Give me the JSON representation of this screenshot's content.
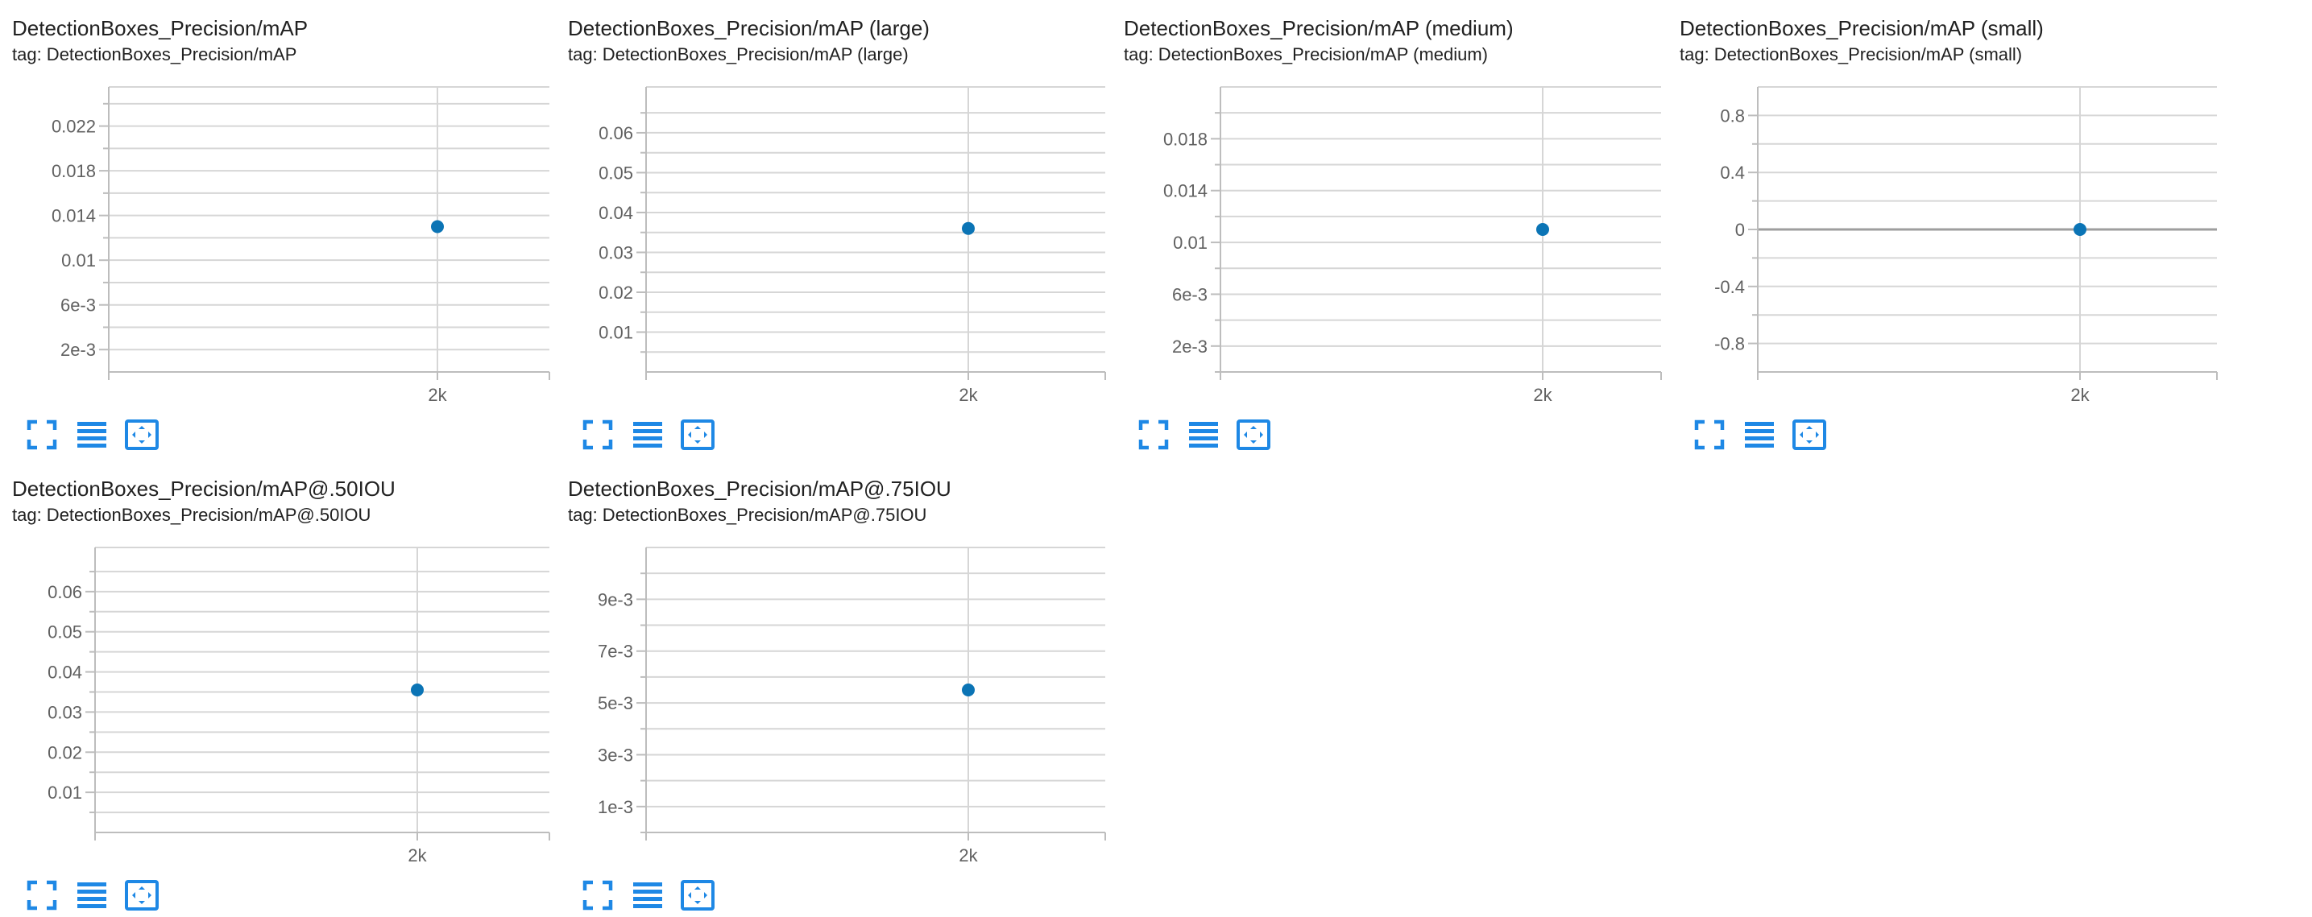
{
  "colors": {
    "accent": "#1e88e5",
    "point": "#0b74b5",
    "grid": "#d6d6d6",
    "axis": "#bdbdbd",
    "zero_line": "#9e9e9e"
  },
  "toolbar_icons": [
    "fullscreen-icon",
    "toggle-log-scale-icon",
    "fit-domain-icon"
  ],
  "chart_data": [
    {
      "type": "scatter",
      "title": "DetectionBoxes_Precision/mAP",
      "tag": "tag: DetectionBoxes_Precision/mAP",
      "x_ticks": [
        "2k"
      ],
      "y_ticks": [
        "0.022",
        "0.018",
        "0.014",
        "0.01",
        "6e-3",
        "2e-3"
      ],
      "ylim": [
        0,
        0.0255
      ],
      "points": [
        {
          "x": "2k",
          "y": 0.013
        }
      ]
    },
    {
      "type": "scatter",
      "title": "DetectionBoxes_Precision/mAP (large)",
      "tag": "tag: DetectionBoxes_Precision/mAP (large)",
      "x_ticks": [
        "2k"
      ],
      "y_ticks": [
        "0.06",
        "0.05",
        "0.04",
        "0.03",
        "0.02",
        "0.01"
      ],
      "ylim": [
        0,
        0.0715
      ],
      "points": [
        {
          "x": "2k",
          "y": 0.036
        }
      ]
    },
    {
      "type": "scatter",
      "title": "DetectionBoxes_Precision/mAP (medium)",
      "tag": "tag: DetectionBoxes_Precision/mAP (medium)",
      "x_ticks": [
        "2k"
      ],
      "y_ticks": [
        "0.018",
        "0.014",
        "0.01",
        "6e-3",
        "2e-3"
      ],
      "ylim": [
        0,
        0.022
      ],
      "points": [
        {
          "x": "2k",
          "y": 0.011
        }
      ]
    },
    {
      "type": "scatter",
      "title": "DetectionBoxes_Precision/mAP (small)",
      "tag": "tag: DetectionBoxes_Precision/mAP (small)",
      "x_ticks": [
        "2k"
      ],
      "y_ticks": [
        "0.8",
        "0.4",
        "0",
        "-0.4",
        "-0.8"
      ],
      "ylim": [
        -1,
        1
      ],
      "zero_line": true,
      "points": [
        {
          "x": "2k",
          "y": 0
        }
      ]
    },
    {
      "type": "scatter",
      "title": "DetectionBoxes_Precision/mAP@.50IOU",
      "tag": "tag: DetectionBoxes_Precision/mAP@.50IOU",
      "x_ticks": [
        "2k"
      ],
      "y_ticks": [
        "0.06",
        "0.05",
        "0.04",
        "0.03",
        "0.02",
        "0.01"
      ],
      "ylim": [
        0,
        0.071
      ],
      "points": [
        {
          "x": "2k",
          "y": 0.0355
        }
      ]
    },
    {
      "type": "scatter",
      "title": "DetectionBoxes_Precision/mAP@.75IOU",
      "tag": "tag: DetectionBoxes_Precision/mAP@.75IOU",
      "x_ticks": [
        "2k"
      ],
      "y_ticks": [
        "9e-3",
        "7e-3",
        "5e-3",
        "3e-3",
        "1e-3"
      ],
      "ylim": [
        0,
        0.011
      ],
      "points": [
        {
          "x": "2k",
          "y": 0.0055
        }
      ]
    }
  ]
}
